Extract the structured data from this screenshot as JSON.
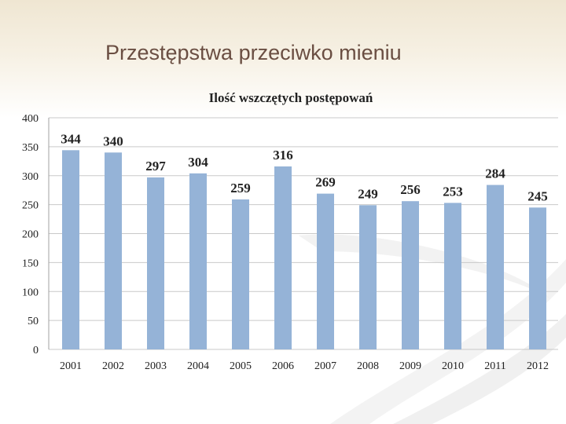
{
  "slide": {
    "title": "Przestępstwa przeciwko mieniu"
  },
  "chart_data": {
    "type": "bar",
    "title": "Ilość wszczętych postępowań",
    "xlabel": "",
    "ylabel": "",
    "categories": [
      "2001",
      "2002",
      "2003",
      "2004",
      "2005",
      "2006",
      "2007",
      "2008",
      "2009",
      "2010",
      "2011",
      "2012"
    ],
    "values": [
      344,
      340,
      297,
      304,
      259,
      316,
      269,
      249,
      256,
      253,
      284,
      245
    ],
    "ylim": [
      0,
      400
    ],
    "yticks": [
      0,
      50,
      100,
      150,
      200,
      250,
      300,
      350,
      400
    ],
    "grid": true,
    "data_labels": true,
    "legend": "none",
    "colors": {
      "bar": "#95b3d7",
      "grid": "#c9c9c9",
      "text": "#222222",
      "title_text": "#6a4e42"
    }
  }
}
